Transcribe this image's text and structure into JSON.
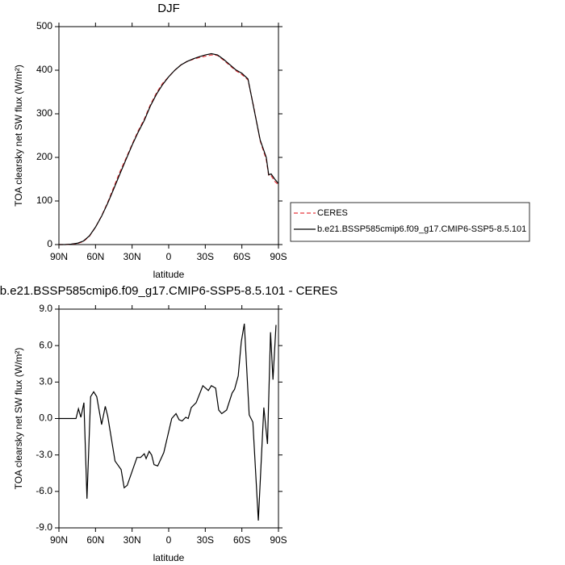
{
  "chart_data": [
    {
      "type": "line",
      "title": "DJF",
      "x_label": "latitude",
      "y_label": "TOA clearsky net SW flux (W/m²)",
      "xlim": [
        90,
        -90
      ],
      "xticks": [
        {
          "value": 90,
          "label": "90N"
        },
        {
          "value": 60,
          "label": "60N"
        },
        {
          "value": 30,
          "label": "30N"
        },
        0,
        {
          "value": -30,
          "label": "30S"
        },
        {
          "value": -60,
          "label": "60S"
        },
        {
          "value": -90,
          "label": "90S"
        }
      ],
      "ylim": [
        0,
        500
      ],
      "yticks": [
        0,
        100,
        200,
        300,
        400,
        500
      ],
      "legend": "right",
      "x": [
        90,
        85,
        80,
        75,
        70,
        65,
        60,
        55,
        50,
        45,
        40,
        35,
        30,
        25,
        20,
        15,
        10,
        5,
        0,
        -5,
        -10,
        -15,
        -20,
        -25,
        -30,
        -35,
        -40,
        -45,
        -50,
        -55,
        -60,
        -65,
        -70,
        -75,
        -80,
        -82,
        -84,
        -87,
        -90
      ],
      "series": [
        {
          "name": "CERES",
          "color": "#e8383d",
          "line_style": "dashed",
          "values": [
            0,
            0,
            1,
            2,
            7,
            19,
            40,
            66,
            97,
            132,
            167,
            198,
            230,
            261,
            288,
            321,
            348,
            370,
            385,
            400,
            412,
            420,
            425,
            429,
            432,
            435,
            434,
            423,
            411,
            399,
            390,
            378,
            312,
            238,
            195,
            158,
            158,
            145,
            137
          ]
        },
        {
          "name": "b.e21.BSSP585cmip6.f09_g17.CMIP6-SSP5-8.5.101",
          "color": "#000000",
          "line_style": "solid",
          "values": [
            0,
            0,
            1,
            3,
            8,
            20,
            40,
            65,
            95,
            128,
            162,
            195,
            228,
            258,
            285,
            318,
            345,
            367,
            385,
            400,
            412,
            420,
            426,
            431,
            435,
            438,
            435,
            425,
            413,
            401,
            393,
            380,
            310,
            240,
            200,
            160,
            162,
            150,
            140
          ]
        }
      ]
    },
    {
      "type": "line",
      "title": "b.e21.BSSP585cmip6.f09_g17.CMIP6-SSP5-8.5.101 - CERES",
      "x_label": "latitude",
      "y_label": "TOA clearsky net SW flux (W/m²)",
      "xlim": [
        90,
        -90
      ],
      "xticks": [
        {
          "value": 90,
          "label": "90N"
        },
        {
          "value": 60,
          "label": "60N"
        },
        {
          "value": 30,
          "label": "30N"
        },
        0,
        {
          "value": -30,
          "label": "30S"
        },
        {
          "value": -60,
          "label": "60S"
        },
        {
          "value": -90,
          "label": "90S"
        }
      ],
      "ylim": [
        -9,
        9
      ],
      "yticks": [
        {
          "value": -9,
          "label": "-9.0"
        },
        {
          "value": -6,
          "label": "-6.0"
        },
        {
          "value": -3,
          "label": "-3.0"
        },
        {
          "value": 0,
          "label": "0.0"
        },
        {
          "value": 3,
          "label": "3.0"
        },
        {
          "value": 6,
          "label": "6.0"
        },
        {
          "value": 9,
          "label": "9.0"
        }
      ],
      "x": [
        90,
        85,
        80,
        76,
        74,
        72,
        69.5,
        67,
        64,
        61.5,
        59,
        55,
        52,
        50,
        44,
        39,
        36.5,
        34,
        26,
        23,
        20,
        18.5,
        16,
        14,
        12,
        9,
        4,
        -2.5,
        -6,
        -8.5,
        -11,
        -14,
        -16,
        -18.5,
        -22.5,
        -28,
        -32.5,
        -35,
        -38.5,
        -41,
        -43.5,
        -47.5,
        -52,
        -54,
        -57,
        -59.5,
        -62,
        -66,
        -69,
        -73.5,
        -78,
        -81,
        -83.5,
        -85.5,
        -88
      ],
      "series": [
        {
          "color": "#000000",
          "line_style": "solid",
          "values": [
            0,
            0,
            0,
            0,
            0.8,
            0.1,
            1.3,
            -6.6,
            1.8,
            2.2,
            1.8,
            -0.5,
            1.0,
            0.2,
            -3.5,
            -4.2,
            -5.7,
            -5.5,
            -3.2,
            -3.2,
            -2.9,
            -3.3,
            -2.7,
            -3.0,
            -3.8,
            -3.9,
            -2.8,
            0.0,
            0.4,
            -0.1,
            -0.2,
            0.1,
            0.0,
            0.9,
            1.3,
            2.7,
            2.3,
            2.7,
            2.5,
            0.7,
            0.4,
            0.7,
            2.1,
            2.4,
            3.5,
            6.3,
            7.8,
            0.3,
            -0.3,
            -8.4,
            0.9,
            -2.1,
            7.1,
            3.2,
            7.7
          ]
        }
      ]
    }
  ]
}
